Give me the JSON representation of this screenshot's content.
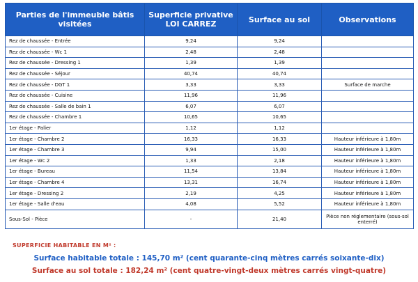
{
  "colors": {
    "header_bg": "#1f5fc4",
    "border": "#2a5db5",
    "blue_text": "#1f5fc4",
    "red_text": "#c0392b"
  },
  "headers": {
    "col1": "Parties de l'immeuble bâtis visitées",
    "col2": "Superficie privative LOI CARREZ",
    "col3": "Surface au sol",
    "col4": "Observations"
  },
  "rows": [
    {
      "name": "Rez de chaussée - Entrée",
      "carrez": "9,24",
      "sol": "9,24",
      "obs": ""
    },
    {
      "name": "Rez de chaussée - Wc 1",
      "carrez": "2,48",
      "sol": "2,48",
      "obs": ""
    },
    {
      "name": "Rez de chaussée - Dressing 1",
      "carrez": "1,39",
      "sol": "1,39",
      "obs": ""
    },
    {
      "name": "Rez de chaussée - Séjour",
      "carrez": "40,74",
      "sol": "40,74",
      "obs": ""
    },
    {
      "name": "Rez de chaussée - DGT 1",
      "carrez": "3,33",
      "sol": "3,33",
      "obs": "Surface de marche"
    },
    {
      "name": "Rez de chaussée - Cuisine",
      "carrez": "11,96",
      "sol": "11,96",
      "obs": ""
    },
    {
      "name": "Rez de chaussée - Salle de bain 1",
      "carrez": "6,07",
      "sol": "6,07",
      "obs": ""
    },
    {
      "name": "Rez de chaussée - Chambre 1",
      "carrez": "10,65",
      "sol": "10,65",
      "obs": ""
    },
    {
      "name": "1er étage - Palier",
      "carrez": "1,12",
      "sol": "1,12",
      "obs": ""
    },
    {
      "name": "1er étage - Chambre 2",
      "carrez": "16,33",
      "sol": "16,33",
      "obs": "Hauteur inférieure à 1,80m"
    },
    {
      "name": "1er étage - Chambre 3",
      "carrez": "9,94",
      "sol": "15,00",
      "obs": "Hauteur inférieure à 1,80m"
    },
    {
      "name": "1er étage - Wc 2",
      "carrez": "1,33",
      "sol": "2,18",
      "obs": "Hauteur inférieure à 1,80m"
    },
    {
      "name": "1er étage - Bureau",
      "carrez": "11,54",
      "sol": "13,84",
      "obs": "Hauteur inférieure à 1,80m"
    },
    {
      "name": "1er étage - Chambre 4",
      "carrez": "13,31",
      "sol": "16,74",
      "obs": "Hauteur inférieure à 1,80m"
    },
    {
      "name": "1er étage - Dressing 2",
      "carrez": "2,19",
      "sol": "4,25",
      "obs": "Hauteur inférieure à 1,80m"
    },
    {
      "name": "1er étage - Salle d'eau",
      "carrez": "4,08",
      "sol": "5,52",
      "obs": "Hauteur inférieure à 1,80m"
    },
    {
      "name": "Sous-Sol - Pièce",
      "carrez": "-",
      "sol": "21,40",
      "obs": "Pièce non réglementaire (sous-sol enterré)"
    }
  ],
  "summary": {
    "label": "SUPERFICIE HABITABLE EN M² :",
    "habitable_total": "Surface habitable totale : 145,70 m² (cent quarante-cinq mètres carrés soixante-dix)",
    "sol_total": "Surface au sol totale : 182,24 m² (cent quatre-vingt-deux mètres carrés vingt-quatre)"
  }
}
